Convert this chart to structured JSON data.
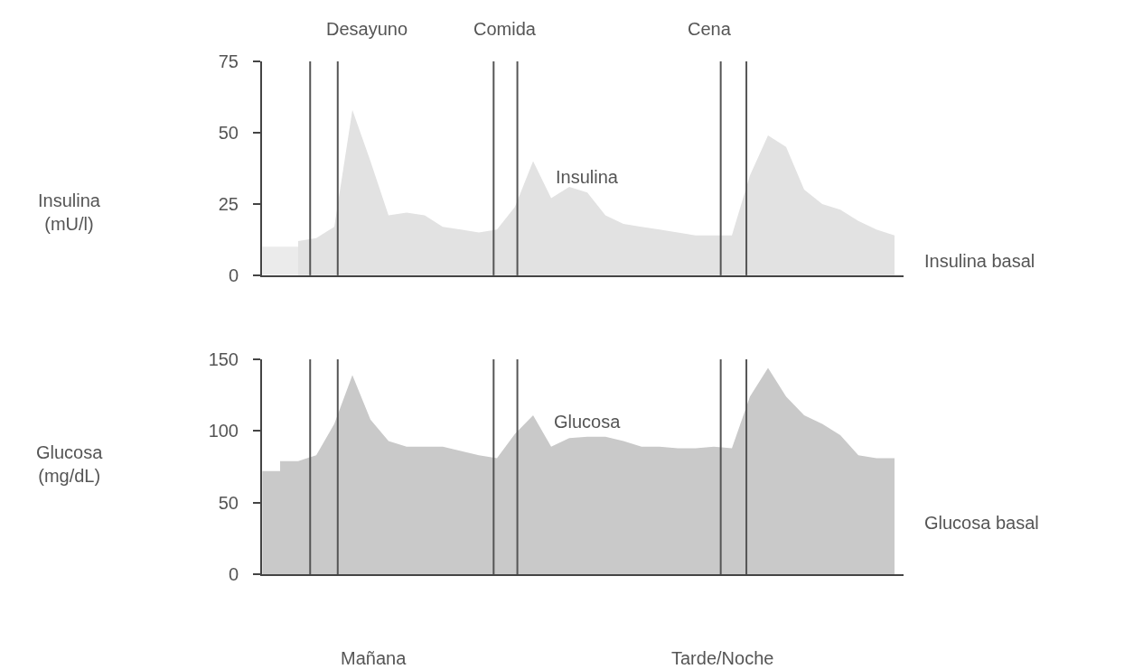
{
  "chart_data": [
    {
      "type": "area",
      "ylabel": "Insulina\n(mU/l)",
      "categories": [
        null,
        null,
        null,
        null,
        null,
        null,
        null,
        null,
        null,
        null,
        null,
        null,
        null,
        null,
        null,
        null,
        null,
        null,
        null,
        null,
        null,
        null,
        null,
        null,
        null,
        null,
        null,
        null,
        null,
        null,
        null,
        null,
        null,
        null,
        null
      ],
      "series": [
        {
          "name": "Insulina",
          "color": "#e2e2e2",
          "values": [
            null,
            12,
            13,
            17,
            58,
            40,
            21,
            22,
            21,
            17,
            16,
            15,
            16,
            24,
            40,
            27,
            31,
            29,
            21,
            18,
            17,
            16,
            15,
            14,
            14,
            14,
            35,
            49,
            45,
            30,
            25,
            23,
            19,
            16,
            14
          ]
        }
      ],
      "ylim": [
        0,
        75
      ],
      "yticks": [
        0,
        25,
        50,
        75
      ],
      "tick_labels": "y",
      "grid": false,
      "bands": [
        {
          "axis": "y",
          "from": 0,
          "to": 10,
          "label": "Insulina basal",
          "color": "#ebebeb"
        }
      ],
      "annotations": [
        "Desayuno",
        "Comida",
        "Cena"
      ]
    },
    {
      "type": "area",
      "ylabel": "Glucosa\n(mg/dL)",
      "categories": [
        null,
        null,
        null,
        null,
        null,
        null,
        null,
        null,
        null,
        null,
        null,
        null,
        null,
        null,
        null,
        null,
        null,
        null,
        null,
        null,
        null,
        null,
        null,
        null,
        null,
        null,
        null,
        null,
        null,
        null,
        null,
        null,
        null,
        null,
        null
      ],
      "series": [
        {
          "name": "Glucosa",
          "color": "#c9c9c9",
          "values": [
            79,
            79,
            83,
            105,
            139,
            108,
            93,
            89,
            89,
            89,
            86,
            83,
            81,
            98,
            111,
            89,
            95,
            96,
            96,
            93,
            89,
            89,
            88,
            88,
            89,
            88,
            124,
            144,
            124,
            111,
            105,
            97,
            83,
            81,
            81
          ]
        }
      ],
      "ylim": [
        0,
        150
      ],
      "yticks": [
        0,
        50,
        100,
        150
      ],
      "tick_labels": "y",
      "grid": false,
      "bands": [
        {
          "axis": "y",
          "from": 0,
          "to": 72,
          "label": "Glucosa basal",
          "color": "#c9c9c9"
        }
      ],
      "annotations": [
        "Mañana",
        "Tarde/Noche"
      ]
    }
  ]
}
